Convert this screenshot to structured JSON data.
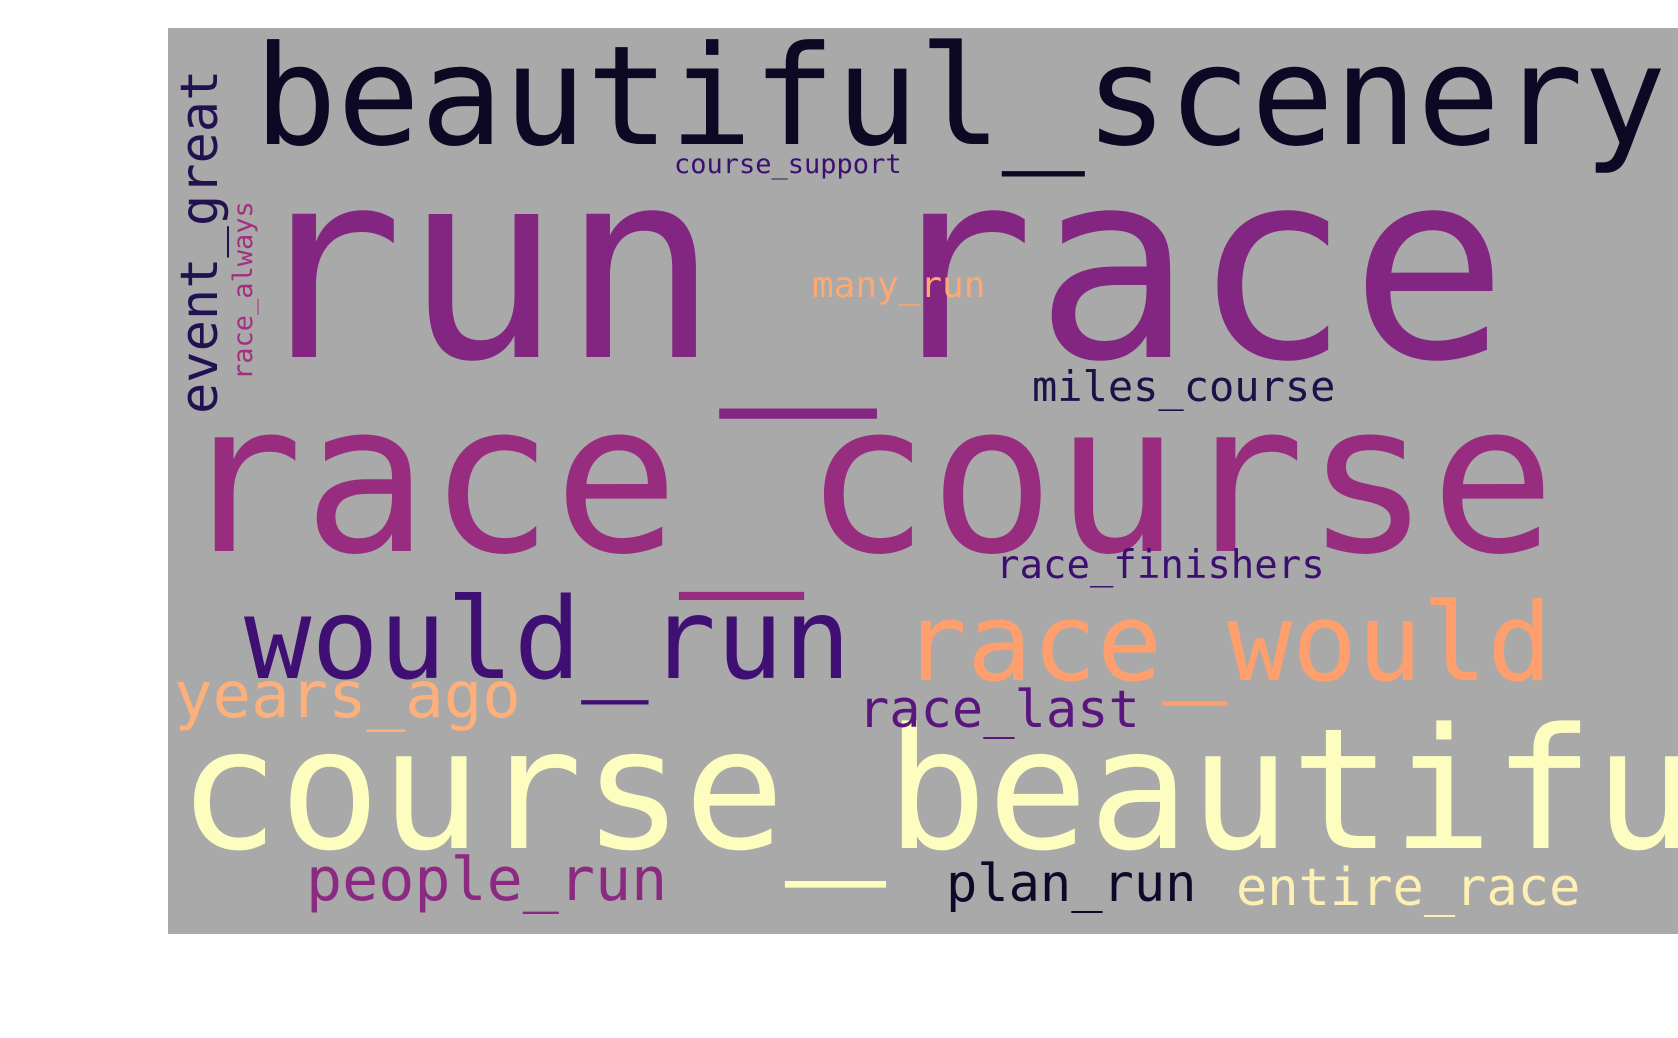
{
  "wordcloud": {
    "background_color": "#a9a9a9",
    "words": [
      {
        "text": "run_race",
        "color": "#832681",
        "orientation": "horizontal"
      },
      {
        "text": "race_course",
        "color": "#982d80",
        "orientation": "horizontal"
      },
      {
        "text": "course_beautiful",
        "color": "#fcfdbf",
        "orientation": "horizontal"
      },
      {
        "text": "beautiful_scenery",
        "color": "#0b0924",
        "orientation": "horizontal"
      },
      {
        "text": "would_run",
        "color": "#400f74",
        "orientation": "horizontal"
      },
      {
        "text": "race_would",
        "color": "#fe9f6d",
        "orientation": "horizontal"
      },
      {
        "text": "years_ago",
        "color": "#feb07a",
        "orientation": "horizontal"
      },
      {
        "text": "event_great",
        "color": "#221150",
        "orientation": "vertical"
      },
      {
        "text": "race_last",
        "color": "#5a167e",
        "orientation": "horizontal"
      },
      {
        "text": "people_run",
        "color": "#8c2981",
        "orientation": "horizontal"
      },
      {
        "text": "plan_run",
        "color": "#0d0a29",
        "orientation": "horizontal"
      },
      {
        "text": "entire_race",
        "color": "#fcf0b4",
        "orientation": "horizontal"
      },
      {
        "text": "miles_course",
        "color": "#1d1147",
        "orientation": "horizontal"
      },
      {
        "text": "race_finishers",
        "color": "#3b0f70",
        "orientation": "horizontal"
      },
      {
        "text": "many_run",
        "color": "#fea973",
        "orientation": "horizontal"
      },
      {
        "text": "course_support",
        "color": "#3b0f70",
        "orientation": "horizontal"
      },
      {
        "text": "race_always",
        "color": "#a3307e",
        "orientation": "vertical"
      }
    ]
  }
}
